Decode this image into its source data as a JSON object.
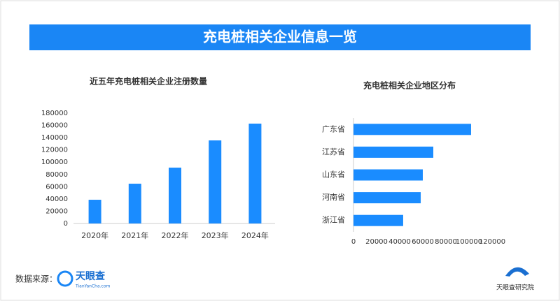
{
  "header": {
    "title": "充电桩相关企业信息一览"
  },
  "chart_data": [
    {
      "type": "bar",
      "title": "近五年充电桩相关企业注册数量",
      "categories": [
        "2020年",
        "2021年",
        "2022年",
        "2023年",
        "2024年"
      ],
      "values": [
        38700,
        64900,
        91100,
        135500,
        162900
      ],
      "color": "#1a8cff",
      "ylim": [
        0,
        180000
      ],
      "yticks": [
        0,
        20000,
        40000,
        60000,
        80000,
        100000,
        120000,
        140000,
        160000,
        180000
      ]
    },
    {
      "type": "bar",
      "horizontal": true,
      "title": "充电桩相关企业地区分布",
      "categories": [
        "广东省",
        "江苏省",
        "山东省",
        "河南省",
        "浙江省"
      ],
      "values": [
        101800,
        69100,
        60000,
        58200,
        43000
      ],
      "color": "#1a8cff",
      "xlim": [
        0,
        120000
      ],
      "xticks": [
        0,
        20000,
        40000,
        60000,
        80000,
        100000,
        120000
      ]
    }
  ],
  "footer": {
    "source_label": "数据来源：",
    "logo": "天眼查",
    "logo_sub": "TianYanCha.com",
    "brand": "天眼查研究院"
  }
}
